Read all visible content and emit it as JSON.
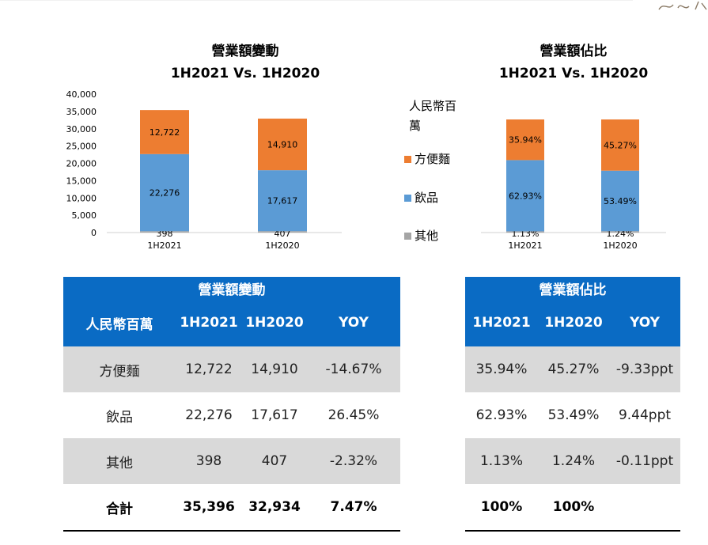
{
  "left_chart_title": "營業額變動",
  "left_chart_subtitle": "1H2021 Vs. 1H2020",
  "right_chart_title": "營業額佔比",
  "right_chart_subtitle": "1H2021 Vs. 1H2020",
  "legend": {
    "unit": "人民幣百萬",
    "items": [
      {
        "label": "方便麵",
        "color": "#ed7d31"
      },
      {
        "label": "飲品",
        "color": "#5b9bd5"
      },
      {
        "label": "其他",
        "color": "#a5a5a5"
      }
    ]
  },
  "chart_data": [
    {
      "type": "bar",
      "stacked": true,
      "title": "營業額變動",
      "subtitle": "1H2021 Vs. 1H2020",
      "categories": [
        "1H2021",
        "1H2020"
      ],
      "series": [
        {
          "name": "其他",
          "values": [
            398,
            407
          ],
          "labels": [
            "398",
            "407"
          ],
          "color": "#a5a5a5"
        },
        {
          "name": "飲品",
          "values": [
            22276,
            17617
          ],
          "labels": [
            "22,276",
            "17,617"
          ],
          "color": "#5b9bd5"
        },
        {
          "name": "方便麵",
          "values": [
            12722,
            14910
          ],
          "labels": [
            "12,722",
            "14,910"
          ],
          "color": "#ed7d31"
        }
      ],
      "ylim": [
        0,
        40000
      ],
      "yticks": [
        "0",
        "5,000",
        "10,000",
        "15,000",
        "20,000",
        "25,000",
        "30,000",
        "35,000",
        "40,000"
      ],
      "ylabel": "人民幣百萬"
    },
    {
      "type": "bar",
      "stacked": true,
      "title": "營業額佔比",
      "subtitle": "1H2021 Vs. 1H2020",
      "categories": [
        "1H2021",
        "1H2020"
      ],
      "series": [
        {
          "name": "其他",
          "values": [
            1.13,
            1.24
          ],
          "labels": [
            "1.13%",
            "1.24%"
          ],
          "color": "#a5a5a5"
        },
        {
          "name": "飲品",
          "values": [
            62.93,
            53.49
          ],
          "labels": [
            "62.93%",
            "53.49%"
          ],
          "color": "#5b9bd5"
        },
        {
          "name": "方便麵",
          "values": [
            35.94,
            45.27
          ],
          "labels": [
            "35.94%",
            "45.27%"
          ],
          "color": "#ed7d31"
        }
      ],
      "ylim": [
        0,
        100
      ]
    }
  ],
  "table_left": {
    "caption": "營業額變動",
    "headers": [
      "人民幣百萬",
      "1H2021",
      "1H2020",
      "YOY"
    ],
    "rows": [
      [
        "方便麵",
        "12,722",
        "14,910",
        "-14.67%"
      ],
      [
        "飲品",
        "22,276",
        "17,617",
        "26.45%"
      ],
      [
        "其他",
        "398",
        "407",
        "-2.32%"
      ],
      [
        "合計",
        "35,396",
        "32,934",
        "7.47%"
      ]
    ]
  },
  "table_right": {
    "caption": "營業額佔比",
    "headers": [
      "1H2021",
      "1H2020",
      "YOY"
    ],
    "rows": [
      [
        "35.94%",
        "45.27%",
        "-9.33ppt"
      ],
      [
        "62.93%",
        "53.49%",
        "9.44ppt"
      ],
      [
        "1.13%",
        "1.24%",
        "-0.11ppt"
      ],
      [
        "100%",
        "100%",
        ""
      ]
    ]
  }
}
